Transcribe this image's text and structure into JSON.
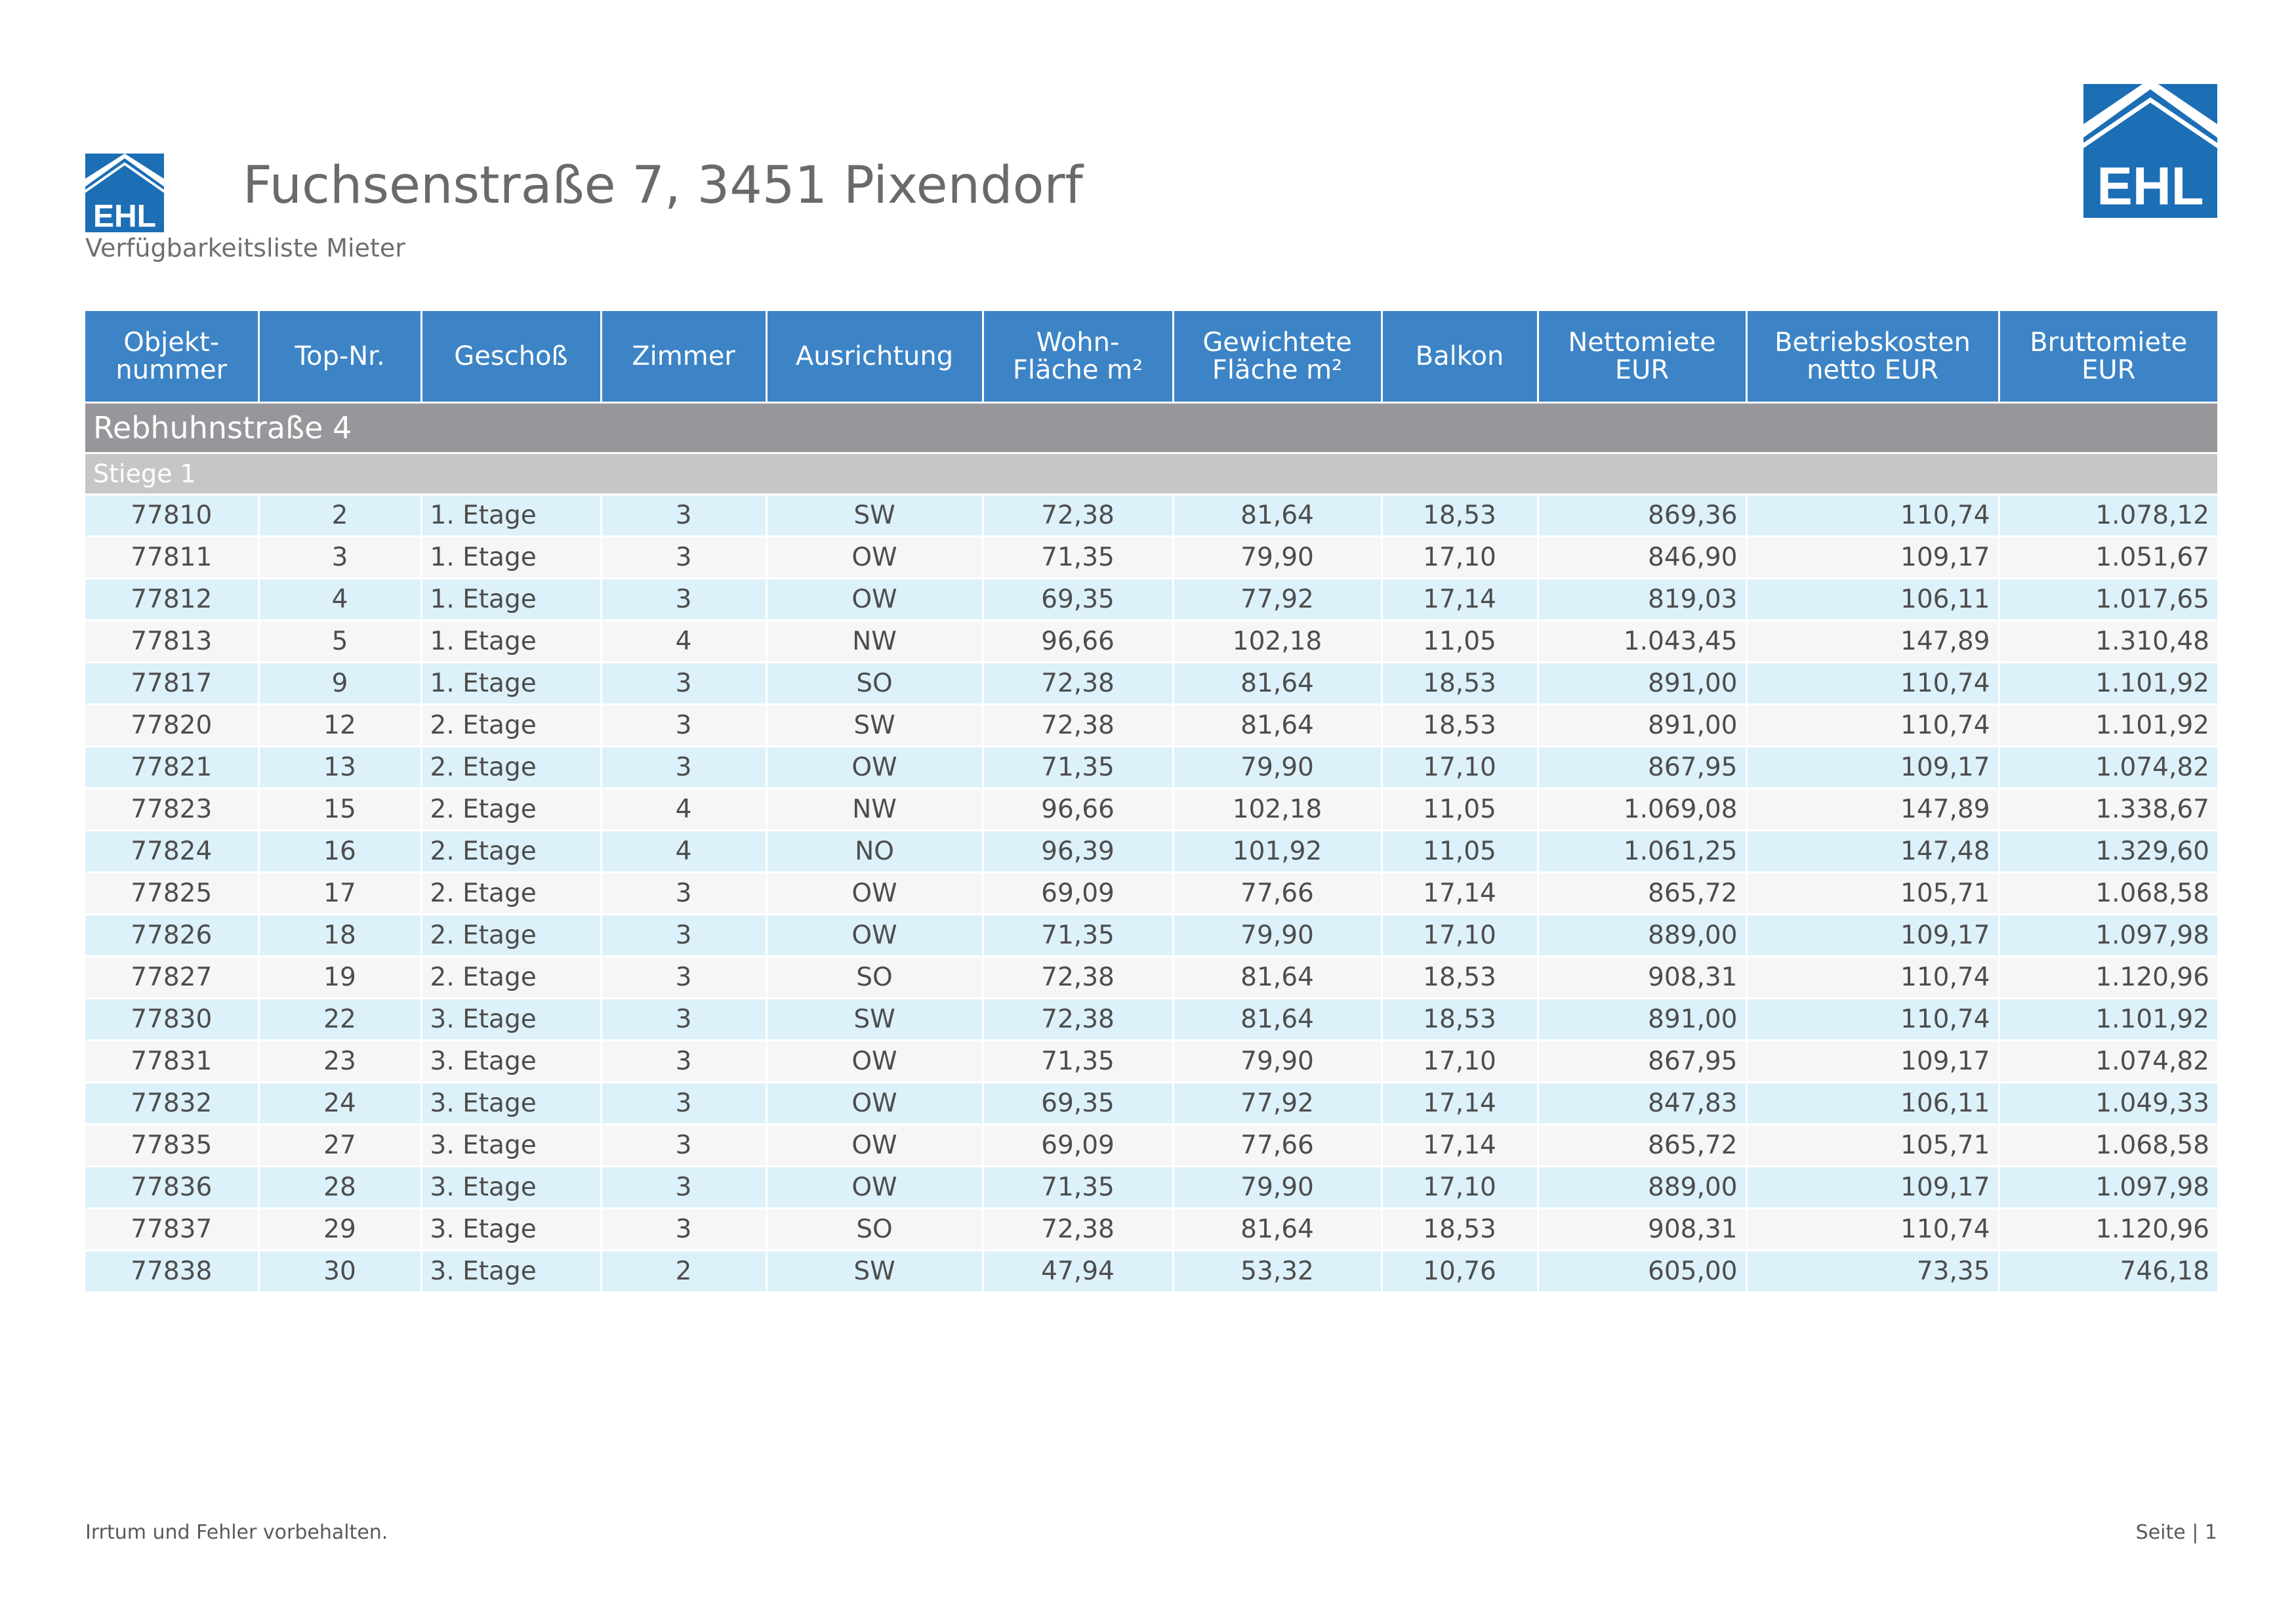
{
  "brand": {
    "logo_text": "EHL",
    "color": "#1c6eb5",
    "header_color": "#3c84c6",
    "group_color": "#97979b",
    "subgroup_color": "#c6c6c6",
    "row_tint": "#dcf1fa"
  },
  "header": {
    "title": "Fuchsenstraße 7, 3451 Pixendorf",
    "subtitle": "Verfügbarkeitsliste Mieter"
  },
  "table": {
    "columns": [
      {
        "lines": [
          "Objekt-",
          "nummer"
        ]
      },
      {
        "lines": [
          "Top-Nr."
        ]
      },
      {
        "lines": [
          "Geschoß"
        ]
      },
      {
        "lines": [
          "Zimmer"
        ]
      },
      {
        "lines": [
          "Ausrichtung"
        ]
      },
      {
        "lines": [
          "Wohn-",
          "Fläche m²"
        ]
      },
      {
        "lines": [
          "Gewichtete",
          "Fläche m²"
        ]
      },
      {
        "lines": [
          "Balkon"
        ]
      },
      {
        "lines": [
          "Nettomiete",
          "EUR"
        ]
      },
      {
        "lines": [
          "Betriebskosten",
          "netto EUR"
        ]
      },
      {
        "lines": [
          "Bruttomiete",
          "EUR"
        ]
      }
    ],
    "group": "Rebhuhnstraße 4",
    "subgroup": "Stiege 1",
    "rows": [
      [
        "77810",
        "2",
        "1. Etage",
        "3",
        "SW",
        "72,38",
        "81,64",
        "18,53",
        "869,36",
        "110,74",
        "1.078,12"
      ],
      [
        "77811",
        "3",
        "1. Etage",
        "3",
        "OW",
        "71,35",
        "79,90",
        "17,10",
        "846,90",
        "109,17",
        "1.051,67"
      ],
      [
        "77812",
        "4",
        "1. Etage",
        "3",
        "OW",
        "69,35",
        "77,92",
        "17,14",
        "819,03",
        "106,11",
        "1.017,65"
      ],
      [
        "77813",
        "5",
        "1. Etage",
        "4",
        "NW",
        "96,66",
        "102,18",
        "11,05",
        "1.043,45",
        "147,89",
        "1.310,48"
      ],
      [
        "77817",
        "9",
        "1. Etage",
        "3",
        "SO",
        "72,38",
        "81,64",
        "18,53",
        "891,00",
        "110,74",
        "1.101,92"
      ],
      [
        "77820",
        "12",
        "2. Etage",
        "3",
        "SW",
        "72,38",
        "81,64",
        "18,53",
        "891,00",
        "110,74",
        "1.101,92"
      ],
      [
        "77821",
        "13",
        "2. Etage",
        "3",
        "OW",
        "71,35",
        "79,90",
        "17,10",
        "867,95",
        "109,17",
        "1.074,82"
      ],
      [
        "77823",
        "15",
        "2. Etage",
        "4",
        "NW",
        "96,66",
        "102,18",
        "11,05",
        "1.069,08",
        "147,89",
        "1.338,67"
      ],
      [
        "77824",
        "16",
        "2. Etage",
        "4",
        "NO",
        "96,39",
        "101,92",
        "11,05",
        "1.061,25",
        "147,48",
        "1.329,60"
      ],
      [
        "77825",
        "17",
        "2. Etage",
        "3",
        "OW",
        "69,09",
        "77,66",
        "17,14",
        "865,72",
        "105,71",
        "1.068,58"
      ],
      [
        "77826",
        "18",
        "2. Etage",
        "3",
        "OW",
        "71,35",
        "79,90",
        "17,10",
        "889,00",
        "109,17",
        "1.097,98"
      ],
      [
        "77827",
        "19",
        "2. Etage",
        "3",
        "SO",
        "72,38",
        "81,64",
        "18,53",
        "908,31",
        "110,74",
        "1.120,96"
      ],
      [
        "77830",
        "22",
        "3. Etage",
        "3",
        "SW",
        "72,38",
        "81,64",
        "18,53",
        "891,00",
        "110,74",
        "1.101,92"
      ],
      [
        "77831",
        "23",
        "3. Etage",
        "3",
        "OW",
        "71,35",
        "79,90",
        "17,10",
        "867,95",
        "109,17",
        "1.074,82"
      ],
      [
        "77832",
        "24",
        "3. Etage",
        "3",
        "OW",
        "69,35",
        "77,92",
        "17,14",
        "847,83",
        "106,11",
        "1.049,33"
      ],
      [
        "77835",
        "27",
        "3. Etage",
        "3",
        "OW",
        "69,09",
        "77,66",
        "17,14",
        "865,72",
        "105,71",
        "1.068,58"
      ],
      [
        "77836",
        "28",
        "3. Etage",
        "3",
        "OW",
        "71,35",
        "79,90",
        "17,10",
        "889,00",
        "109,17",
        "1.097,98"
      ],
      [
        "77837",
        "29",
        "3. Etage",
        "3",
        "SO",
        "72,38",
        "81,64",
        "18,53",
        "908,31",
        "110,74",
        "1.120,96"
      ],
      [
        "77838",
        "30",
        "3. Etage",
        "2",
        "SW",
        "47,94",
        "53,32",
        "10,76",
        "605,00",
        "73,35",
        "746,18"
      ]
    ]
  },
  "footer": {
    "disclaimer": "Irrtum und Fehler vorbehalten.",
    "page": "Seite | 1"
  }
}
